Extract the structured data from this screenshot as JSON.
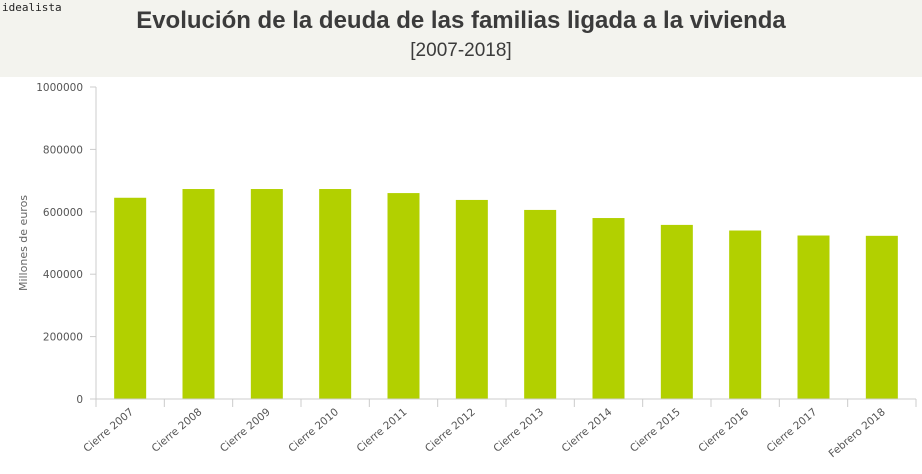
{
  "logo": "idealista",
  "title": "Evolución de la deuda de las familias ligada a la vivienda",
  "subtitle": "[2007-2018]",
  "colors": {
    "bar": "#b2d000",
    "header_bg": "#f3f3ee",
    "axis": "#cccccc"
  },
  "chart_data": {
    "type": "bar",
    "title": "Evolución de la deuda de las familias ligada a la vivienda",
    "subtitle": "[2007-2018]",
    "xlabel": "",
    "ylabel": "Millones de euros",
    "ylim": [
      0,
      1000000
    ],
    "yticks": [
      0,
      200000,
      400000,
      600000,
      800000,
      1000000
    ],
    "grid": false,
    "categories": [
      "Cierre 2007",
      "Cierre 2008",
      "Cierre 2009",
      "Cierre 2010",
      "Cierre 2011",
      "Cierre 2012",
      "Cierre 2013",
      "Cierre 2014",
      "Cierre 2015",
      "Cierre 2016",
      "Cierre 2017",
      "Febrero 2018"
    ],
    "values": [
      645000,
      673000,
      673000,
      673000,
      660000,
      638000,
      606000,
      580000,
      558000,
      540000,
      524000,
      523000
    ]
  }
}
